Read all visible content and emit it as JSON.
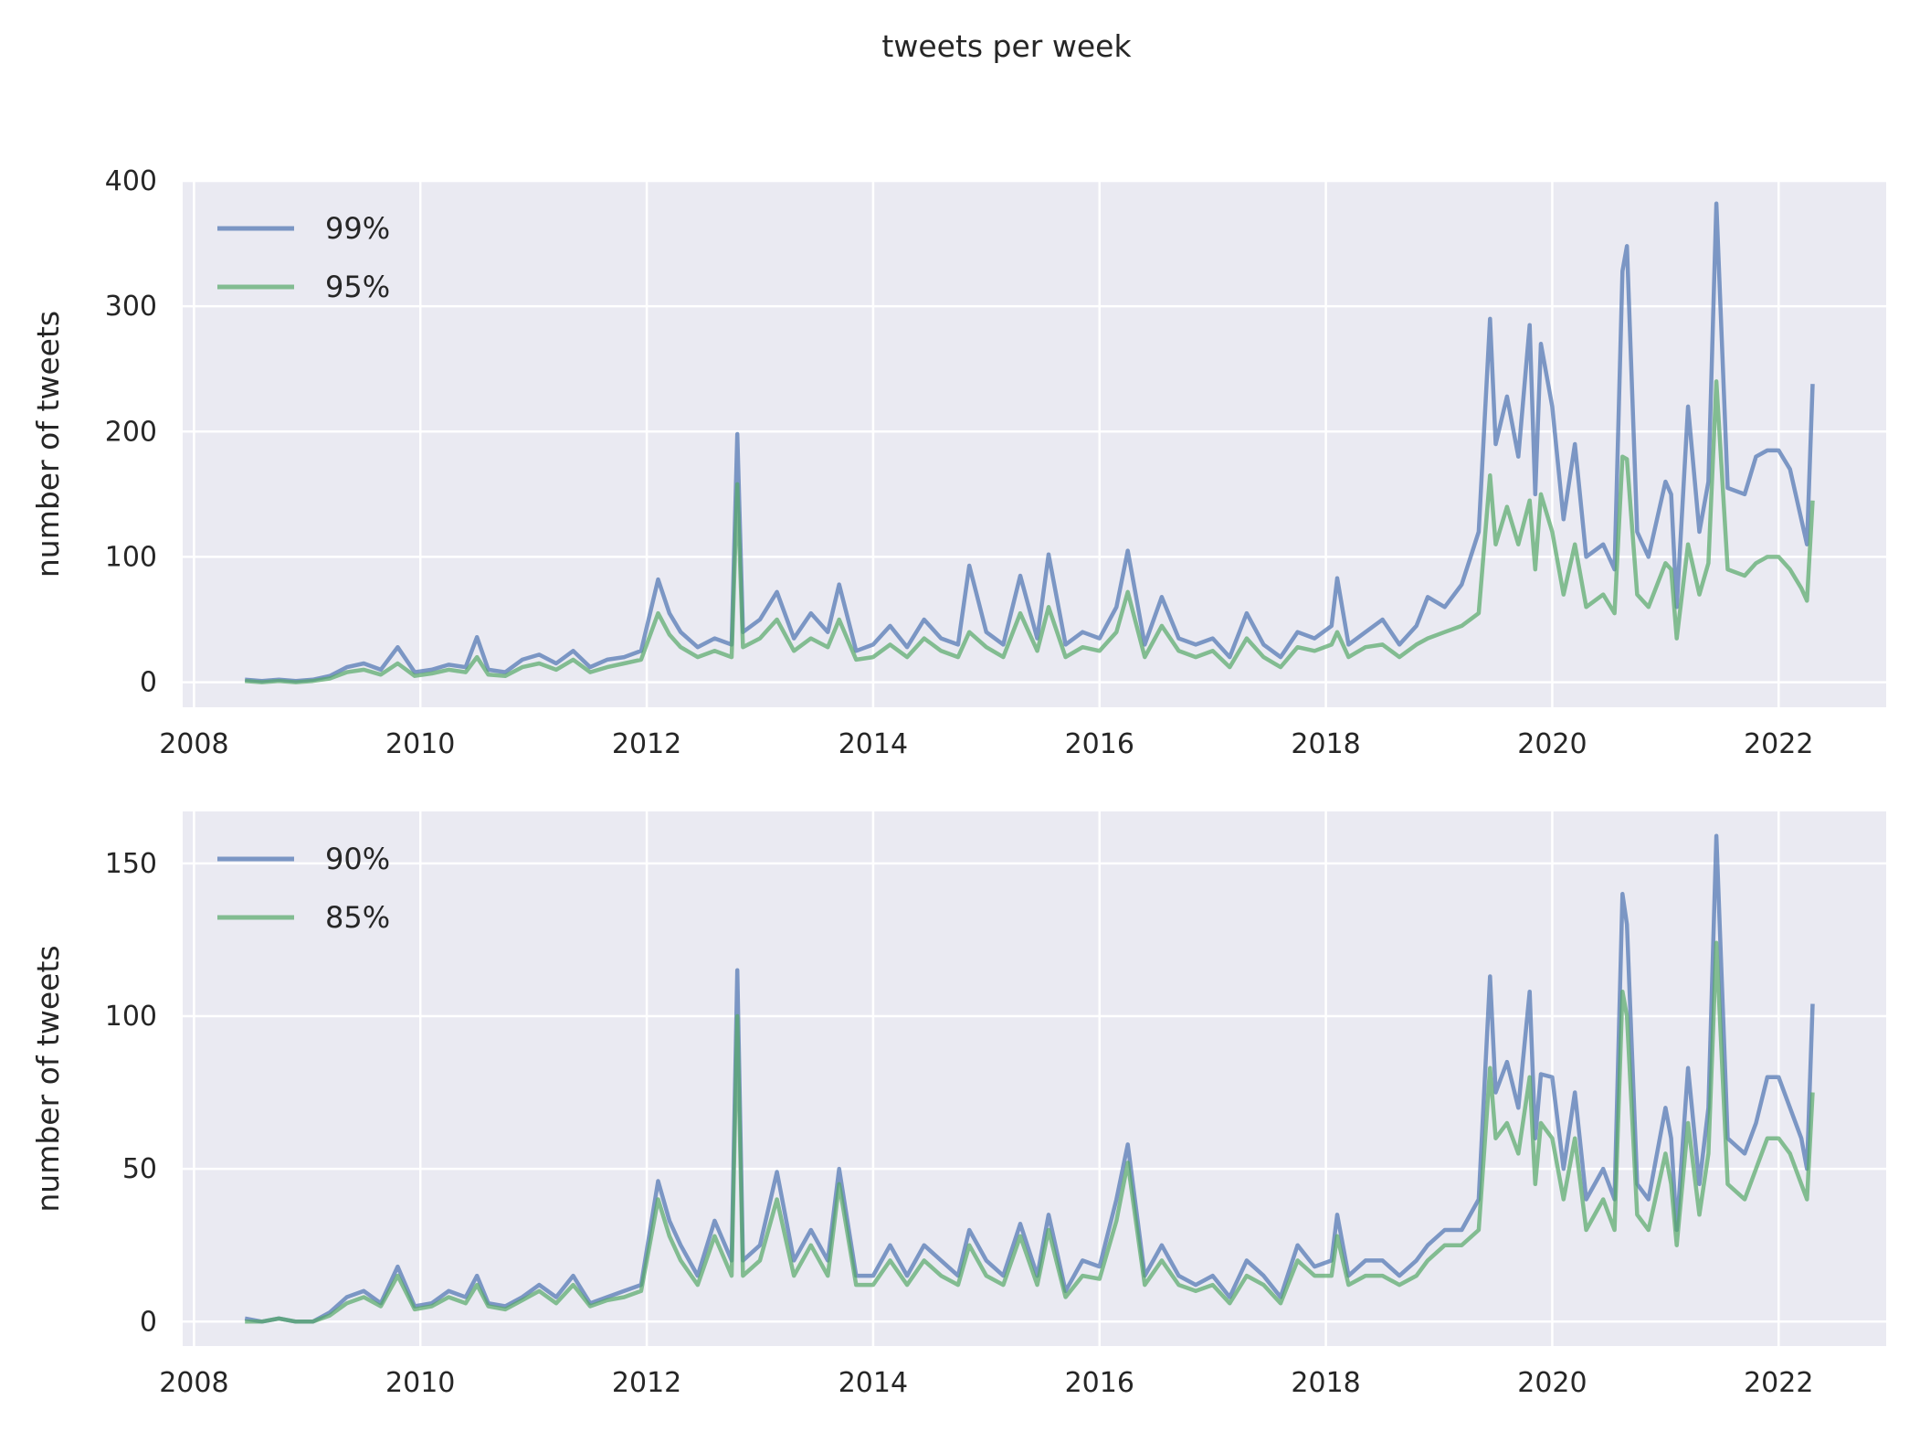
{
  "title": "tweets per week",
  "colors": {
    "background": "#eaeaf2",
    "grid": "#ffffff",
    "text": "#262626",
    "series_a": "#4c72b0",
    "series_b": "#55a868"
  },
  "chart_data": [
    {
      "type": "line",
      "ylabel": "number of tweets",
      "ylim": [
        -20,
        400
      ],
      "xlim": [
        2007.9,
        2022.95
      ],
      "yticks": [
        0,
        100,
        200,
        300,
        400
      ],
      "xticks": [
        2008,
        2010,
        2012,
        2014,
        2016,
        2018,
        2020,
        2022
      ],
      "grid": true,
      "legend_position": "top-left",
      "series": [
        {
          "name": "99%",
          "color": "#4c72b0",
          "x": [
            2008.45,
            2008.6,
            2008.75,
            2008.9,
            2009.05,
            2009.2,
            2009.35,
            2009.5,
            2009.65,
            2009.8,
            2009.95,
            2010.1,
            2010.25,
            2010.4,
            2010.5,
            2010.6,
            2010.75,
            2010.9,
            2011.05,
            2011.2,
            2011.35,
            2011.5,
            2011.65,
            2011.8,
            2011.95,
            2012.1,
            2012.2,
            2012.3,
            2012.45,
            2012.6,
            2012.75,
            2012.8,
            2012.85,
            2013.0,
            2013.15,
            2013.3,
            2013.45,
            2013.6,
            2013.7,
            2013.85,
            2014.0,
            2014.15,
            2014.3,
            2014.45,
            2014.6,
            2014.75,
            2014.85,
            2015.0,
            2015.15,
            2015.3,
            2015.45,
            2015.55,
            2015.7,
            2015.85,
            2016.0,
            2016.15,
            2016.25,
            2016.4,
            2016.55,
            2016.7,
            2016.85,
            2017.0,
            2017.15,
            2017.3,
            2017.45,
            2017.6,
            2017.75,
            2017.9,
            2018.05,
            2018.1,
            2018.2,
            2018.35,
            2018.5,
            2018.65,
            2018.8,
            2018.9,
            2019.05,
            2019.2,
            2019.35,
            2019.45,
            2019.5,
            2019.6,
            2019.7,
            2019.8,
            2019.85,
            2019.9,
            2020.0,
            2020.1,
            2020.2,
            2020.3,
            2020.45,
            2020.55,
            2020.62,
            2020.66,
            2020.75,
            2020.85,
            2021.0,
            2021.05,
            2021.1,
            2021.2,
            2021.3,
            2021.38,
            2021.45,
            2021.55,
            2021.7,
            2021.8,
            2021.9,
            2022.0,
            2022.1,
            2022.2,
            2022.25,
            2022.3
          ],
          "values": [
            2,
            1,
            2,
            1,
            2,
            5,
            12,
            15,
            10,
            28,
            8,
            10,
            14,
            12,
            36,
            10,
            8,
            18,
            22,
            15,
            25,
            12,
            18,
            20,
            25,
            82,
            55,
            40,
            28,
            35,
            30,
            198,
            40,
            50,
            72,
            35,
            55,
            40,
            78,
            25,
            30,
            45,
            28,
            50,
            35,
            30,
            93,
            40,
            30,
            85,
            35,
            102,
            30,
            40,
            35,
            60,
            105,
            30,
            68,
            35,
            30,
            35,
            20,
            55,
            30,
            20,
            40,
            35,
            45,
            83,
            30,
            40,
            50,
            30,
            45,
            68,
            60,
            78,
            120,
            290,
            190,
            228,
            180,
            285,
            150,
            270,
            220,
            130,
            190,
            100,
            110,
            90,
            328,
            348,
            120,
            100,
            160,
            150,
            60,
            220,
            120,
            160,
            382,
            155,
            150,
            180,
            185,
            185,
            170,
            130,
            110,
            238
          ]
        },
        {
          "name": "95%",
          "color": "#55a868",
          "x": [
            2008.45,
            2008.6,
            2008.75,
            2008.9,
            2009.05,
            2009.2,
            2009.35,
            2009.5,
            2009.65,
            2009.8,
            2009.95,
            2010.1,
            2010.25,
            2010.4,
            2010.5,
            2010.6,
            2010.75,
            2010.9,
            2011.05,
            2011.2,
            2011.35,
            2011.5,
            2011.65,
            2011.8,
            2011.95,
            2012.1,
            2012.2,
            2012.3,
            2012.45,
            2012.6,
            2012.75,
            2012.8,
            2012.85,
            2013.0,
            2013.15,
            2013.3,
            2013.45,
            2013.6,
            2013.7,
            2013.85,
            2014.0,
            2014.15,
            2014.3,
            2014.45,
            2014.6,
            2014.75,
            2014.85,
            2015.0,
            2015.15,
            2015.3,
            2015.45,
            2015.55,
            2015.7,
            2015.85,
            2016.0,
            2016.15,
            2016.25,
            2016.4,
            2016.55,
            2016.7,
            2016.85,
            2017.0,
            2017.15,
            2017.3,
            2017.45,
            2017.6,
            2017.75,
            2017.9,
            2018.05,
            2018.1,
            2018.2,
            2018.35,
            2018.5,
            2018.65,
            2018.8,
            2018.9,
            2019.05,
            2019.2,
            2019.35,
            2019.45,
            2019.5,
            2019.6,
            2019.7,
            2019.8,
            2019.85,
            2019.9,
            2020.0,
            2020.1,
            2020.2,
            2020.3,
            2020.45,
            2020.55,
            2020.62,
            2020.66,
            2020.75,
            2020.85,
            2021.0,
            2021.05,
            2021.1,
            2021.2,
            2021.3,
            2021.38,
            2021.45,
            2021.55,
            2021.7,
            2021.8,
            2021.9,
            2022.0,
            2022.1,
            2022.2,
            2022.25,
            2022.3
          ],
          "values": [
            1,
            0,
            1,
            0,
            1,
            3,
            8,
            10,
            6,
            15,
            5,
            7,
            10,
            8,
            20,
            6,
            5,
            12,
            15,
            10,
            18,
            8,
            12,
            15,
            18,
            55,
            38,
            28,
            20,
            25,
            20,
            158,
            28,
            35,
            50,
            25,
            35,
            28,
            50,
            18,
            20,
            30,
            20,
            35,
            25,
            20,
            40,
            28,
            20,
            55,
            25,
            60,
            20,
            28,
            25,
            40,
            72,
            20,
            45,
            25,
            20,
            25,
            12,
            35,
            20,
            12,
            28,
            25,
            30,
            40,
            20,
            28,
            30,
            20,
            30,
            35,
            40,
            45,
            55,
            165,
            110,
            140,
            110,
            145,
            90,
            150,
            120,
            70,
            110,
            60,
            70,
            55,
            180,
            178,
            70,
            60,
            95,
            90,
            35,
            110,
            70,
            95,
            240,
            90,
            85,
            95,
            100,
            100,
            90,
            75,
            65,
            145
          ]
        }
      ]
    },
    {
      "type": "line",
      "ylabel": "number of tweets",
      "ylim": [
        -8,
        167
      ],
      "xlim": [
        2007.9,
        2022.95
      ],
      "yticks": [
        0,
        50,
        100,
        150
      ],
      "xticks": [
        2008,
        2010,
        2012,
        2014,
        2016,
        2018,
        2020,
        2022
      ],
      "grid": true,
      "legend_position": "top-left",
      "series": [
        {
          "name": "90%",
          "color": "#4c72b0",
          "x": [
            2008.45,
            2008.6,
            2008.75,
            2008.9,
            2009.05,
            2009.2,
            2009.35,
            2009.5,
            2009.65,
            2009.8,
            2009.95,
            2010.1,
            2010.25,
            2010.4,
            2010.5,
            2010.6,
            2010.75,
            2010.9,
            2011.05,
            2011.2,
            2011.35,
            2011.5,
            2011.65,
            2011.8,
            2011.95,
            2012.1,
            2012.2,
            2012.3,
            2012.45,
            2012.6,
            2012.75,
            2012.8,
            2012.85,
            2013.0,
            2013.15,
            2013.3,
            2013.45,
            2013.6,
            2013.7,
            2013.85,
            2014.0,
            2014.15,
            2014.3,
            2014.45,
            2014.6,
            2014.75,
            2014.85,
            2015.0,
            2015.15,
            2015.3,
            2015.45,
            2015.55,
            2015.7,
            2015.85,
            2016.0,
            2016.15,
            2016.25,
            2016.4,
            2016.55,
            2016.7,
            2016.85,
            2017.0,
            2017.15,
            2017.3,
            2017.45,
            2017.6,
            2017.75,
            2017.9,
            2018.05,
            2018.1,
            2018.2,
            2018.35,
            2018.5,
            2018.65,
            2018.8,
            2018.9,
            2019.05,
            2019.2,
            2019.35,
            2019.45,
            2019.5,
            2019.6,
            2019.7,
            2019.8,
            2019.85,
            2019.9,
            2020.0,
            2020.1,
            2020.2,
            2020.3,
            2020.45,
            2020.55,
            2020.62,
            2020.66,
            2020.75,
            2020.85,
            2021.0,
            2021.05,
            2021.1,
            2021.2,
            2021.3,
            2021.38,
            2021.45,
            2021.55,
            2021.7,
            2021.8,
            2021.9,
            2022.0,
            2022.1,
            2022.2,
            2022.25,
            2022.3
          ],
          "values": [
            1,
            0,
            1,
            0,
            0,
            3,
            8,
            10,
            6,
            18,
            5,
            6,
            10,
            8,
            15,
            6,
            5,
            8,
            12,
            8,
            15,
            6,
            8,
            10,
            12,
            46,
            33,
            25,
            15,
            33,
            20,
            115,
            20,
            25,
            49,
            20,
            30,
            20,
            50,
            15,
            15,
            25,
            15,
            25,
            20,
            15,
            30,
            20,
            15,
            32,
            15,
            35,
            10,
            20,
            18,
            40,
            58,
            15,
            25,
            15,
            12,
            15,
            8,
            20,
            15,
            8,
            25,
            18,
            20,
            35,
            15,
            20,
            20,
            15,
            20,
            25,
            30,
            30,
            40,
            113,
            75,
            85,
            70,
            108,
            60,
            81,
            80,
            50,
            75,
            40,
            50,
            40,
            140,
            130,
            45,
            40,
            70,
            60,
            30,
            83,
            45,
            70,
            159,
            60,
            55,
            65,
            80,
            80,
            70,
            60,
            50,
            104
          ]
        },
        {
          "name": "85%",
          "color": "#55a868",
          "x": [
            2008.45,
            2008.6,
            2008.75,
            2008.9,
            2009.05,
            2009.2,
            2009.35,
            2009.5,
            2009.65,
            2009.8,
            2009.95,
            2010.1,
            2010.25,
            2010.4,
            2010.5,
            2010.6,
            2010.75,
            2010.9,
            2011.05,
            2011.2,
            2011.35,
            2011.5,
            2011.65,
            2011.8,
            2011.95,
            2012.1,
            2012.2,
            2012.3,
            2012.45,
            2012.6,
            2012.75,
            2012.8,
            2012.85,
            2013.0,
            2013.15,
            2013.3,
            2013.45,
            2013.6,
            2013.7,
            2013.85,
            2014.0,
            2014.15,
            2014.3,
            2014.45,
            2014.6,
            2014.75,
            2014.85,
            2015.0,
            2015.15,
            2015.3,
            2015.45,
            2015.55,
            2015.7,
            2015.85,
            2016.0,
            2016.15,
            2016.25,
            2016.4,
            2016.55,
            2016.7,
            2016.85,
            2017.0,
            2017.15,
            2017.3,
            2017.45,
            2017.6,
            2017.75,
            2017.9,
            2018.05,
            2018.1,
            2018.2,
            2018.35,
            2018.5,
            2018.65,
            2018.8,
            2018.9,
            2019.05,
            2019.2,
            2019.35,
            2019.45,
            2019.5,
            2019.6,
            2019.7,
            2019.8,
            2019.85,
            2019.9,
            2020.0,
            2020.1,
            2020.2,
            2020.3,
            2020.45,
            2020.55,
            2020.62,
            2020.66,
            2020.75,
            2020.85,
            2021.0,
            2021.05,
            2021.1,
            2021.2,
            2021.3,
            2021.38,
            2021.45,
            2021.55,
            2021.7,
            2021.8,
            2021.9,
            2022.0,
            2022.1,
            2022.2,
            2022.25,
            2022.3
          ],
          "values": [
            0,
            0,
            1,
            0,
            0,
            2,
            6,
            8,
            5,
            15,
            4,
            5,
            8,
            6,
            12,
            5,
            4,
            7,
            10,
            6,
            12,
            5,
            7,
            8,
            10,
            40,
            28,
            20,
            12,
            28,
            15,
            100,
            15,
            20,
            40,
            15,
            25,
            15,
            45,
            12,
            12,
            20,
            12,
            20,
            15,
            12,
            25,
            15,
            12,
            28,
            12,
            30,
            8,
            15,
            14,
            33,
            52,
            12,
            20,
            12,
            10,
            12,
            6,
            15,
            12,
            6,
            20,
            15,
            15,
            28,
            12,
            15,
            15,
            12,
            15,
            20,
            25,
            25,
            30,
            83,
            60,
            65,
            55,
            80,
            45,
            65,
            60,
            40,
            60,
            30,
            40,
            30,
            108,
            100,
            35,
            30,
            55,
            45,
            25,
            65,
            35,
            55,
            124,
            45,
            40,
            50,
            60,
            60,
            55,
            45,
            40,
            75
          ]
        }
      ]
    }
  ]
}
